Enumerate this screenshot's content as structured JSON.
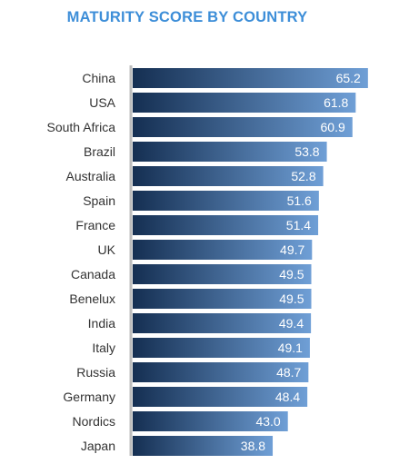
{
  "chart_data": {
    "type": "bar",
    "orientation": "horizontal",
    "title": "MATURITY SCORE BY COUNTRY",
    "xlabel": "",
    "ylabel": "",
    "categories": [
      "China",
      "USA",
      "South Africa",
      "Brazil",
      "Australia",
      "Spain",
      "France",
      "UK",
      "Canada",
      "Benelux",
      "India",
      "Italy",
      "Russia",
      "Germany",
      "Nordics",
      "Japan"
    ],
    "values": [
      65.2,
      61.8,
      60.9,
      53.8,
      52.8,
      51.6,
      51.4,
      49.7,
      49.5,
      49.5,
      49.4,
      49.1,
      48.7,
      48.4,
      43.0,
      38.8
    ],
    "value_labels": [
      "65.2",
      "61.8",
      "60.9",
      "53.8",
      "52.8",
      "51.6",
      "51.4",
      "49.7",
      "49.5",
      "49.5",
      "49.4",
      "49.1",
      "48.7",
      "48.4",
      "43.0",
      "38.8"
    ],
    "xlim": [
      0,
      66.5
    ],
    "grid": false,
    "legend": "none",
    "colors": {
      "bar_start": "#152f52",
      "bar_end": "#6f9fd6",
      "title": "#3d8ed8",
      "axis": "#bdbdbd",
      "label": "#333333"
    }
  }
}
